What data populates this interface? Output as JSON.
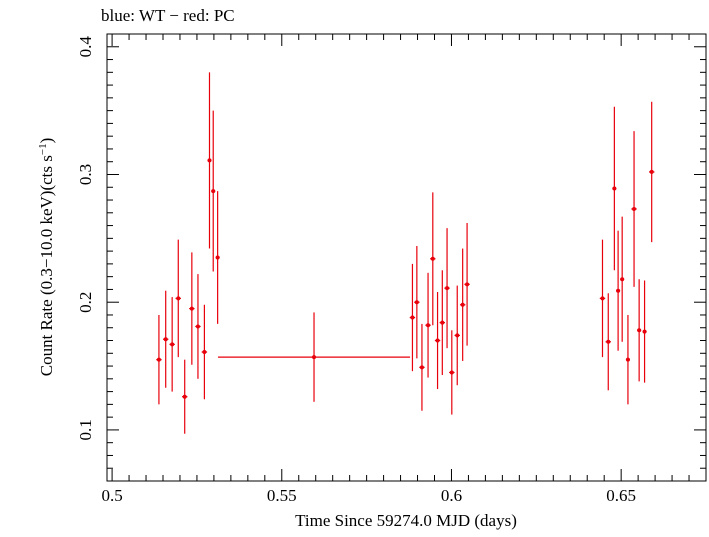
{
  "header": "blue: WT − red: PC",
  "colors": {
    "series": "#e8000b",
    "axis": "#000000"
  },
  "chart_data": {
    "type": "scatter",
    "xlabel": "Time Since 59274.0 MJD (days)",
    "ylabel_main": "Count Rate (0.3−10.0 keV)(cts s",
    "ylabel_sup": "−1",
    "ylabel_close": ")",
    "xlim": [
      0.4985,
      0.675
    ],
    "ylim": [
      0.06,
      0.41
    ],
    "xticks": [
      {
        "value": 0.5,
        "label": "0.5"
      },
      {
        "value": 0.55,
        "label": "0.55"
      },
      {
        "value": 0.6,
        "label": "0.6"
      },
      {
        "value": 0.65,
        "label": "0.65"
      }
    ],
    "yticks": [
      {
        "value": 0.1,
        "label": "0.1"
      },
      {
        "value": 0.2,
        "label": "0.2"
      },
      {
        "value": 0.3,
        "label": "0.3"
      },
      {
        "value": 0.4,
        "label": "0.4"
      }
    ],
    "series": [
      {
        "points": [
          {
            "x": 0.5138,
            "xerr": 0.0008,
            "y": 0.155,
            "yerr": 0.035
          },
          {
            "x": 0.5158,
            "xerr": 0.0008,
            "y": 0.171,
            "yerr": 0.038
          },
          {
            "x": 0.5177,
            "xerr": 0.0008,
            "y": 0.167,
            "yerr": 0.037
          },
          {
            "x": 0.5195,
            "xerr": 0.0008,
            "y": 0.203,
            "yerr": 0.046
          },
          {
            "x": 0.5214,
            "xerr": 0.0008,
            "y": 0.126,
            "yerr": 0.029
          },
          {
            "x": 0.5235,
            "xerr": 0.0008,
            "y": 0.195,
            "yerr": 0.044
          },
          {
            "x": 0.5253,
            "xerr": 0.0008,
            "y": 0.181,
            "yerr": 0.041
          },
          {
            "x": 0.5272,
            "xerr": 0.0008,
            "y": 0.161,
            "yerr": 0.037
          },
          {
            "x": 0.5287,
            "xerr": 0.0006,
            "y": 0.311,
            "yerr": 0.069
          },
          {
            "x": 0.5298,
            "xerr": 0.0006,
            "y": 0.287,
            "yerr": 0.063
          },
          {
            "x": 0.5311,
            "xerr": 0.0006,
            "y": 0.235,
            "yerr": 0.052
          },
          {
            "x": 0.5595,
            "xerr": 0.0283,
            "y": 0.157,
            "yerr": 0.035
          },
          {
            "x": 0.5885,
            "xerr": 0.0008,
            "y": 0.188,
            "yerr": 0.042
          },
          {
            "x": 0.5898,
            "xerr": 0.0008,
            "y": 0.2,
            "yerr": 0.044
          },
          {
            "x": 0.5913,
            "xerr": 0.0008,
            "y": 0.149,
            "yerr": 0.034
          },
          {
            "x": 0.5931,
            "xerr": 0.0008,
            "y": 0.182,
            "yerr": 0.041
          },
          {
            "x": 0.5945,
            "xerr": 0.0008,
            "y": 0.234,
            "yerr": 0.052
          },
          {
            "x": 0.5959,
            "xerr": 0.0008,
            "y": 0.17,
            "yerr": 0.038
          },
          {
            "x": 0.5973,
            "xerr": 0.0008,
            "y": 0.184,
            "yerr": 0.041
          },
          {
            "x": 0.5987,
            "xerr": 0.0008,
            "y": 0.211,
            "yerr": 0.047
          },
          {
            "x": 0.6001,
            "xerr": 0.0008,
            "y": 0.145,
            "yerr": 0.033
          },
          {
            "x": 0.6017,
            "xerr": 0.0008,
            "y": 0.174,
            "yerr": 0.039
          },
          {
            "x": 0.6033,
            "xerr": 0.0008,
            "y": 0.198,
            "yerr": 0.044
          },
          {
            "x": 0.6046,
            "xerr": 0.0008,
            "y": 0.214,
            "yerr": 0.048
          },
          {
            "x": 0.6445,
            "xerr": 0.0008,
            "y": 0.203,
            "yerr": 0.046
          },
          {
            "x": 0.6462,
            "xerr": 0.0008,
            "y": 0.169,
            "yerr": 0.038
          },
          {
            "x": 0.648,
            "xerr": 0.0006,
            "y": 0.289,
            "yerr": 0.064
          },
          {
            "x": 0.6491,
            "xerr": 0.0006,
            "y": 0.209,
            "yerr": 0.047
          },
          {
            "x": 0.6503,
            "xerr": 0.0006,
            "y": 0.218,
            "yerr": 0.049
          },
          {
            "x": 0.652,
            "xerr": 0.0006,
            "y": 0.155,
            "yerr": 0.035
          },
          {
            "x": 0.6538,
            "xerr": 0.0008,
            "y": 0.273,
            "yerr": 0.061
          },
          {
            "x": 0.6553,
            "xerr": 0.0006,
            "y": 0.178,
            "yerr": 0.04
          },
          {
            "x": 0.6569,
            "xerr": 0.0006,
            "y": 0.177,
            "yerr": 0.04
          },
          {
            "x": 0.659,
            "xerr": 0.0008,
            "y": 0.302,
            "yerr": 0.055
          }
        ]
      }
    ]
  }
}
